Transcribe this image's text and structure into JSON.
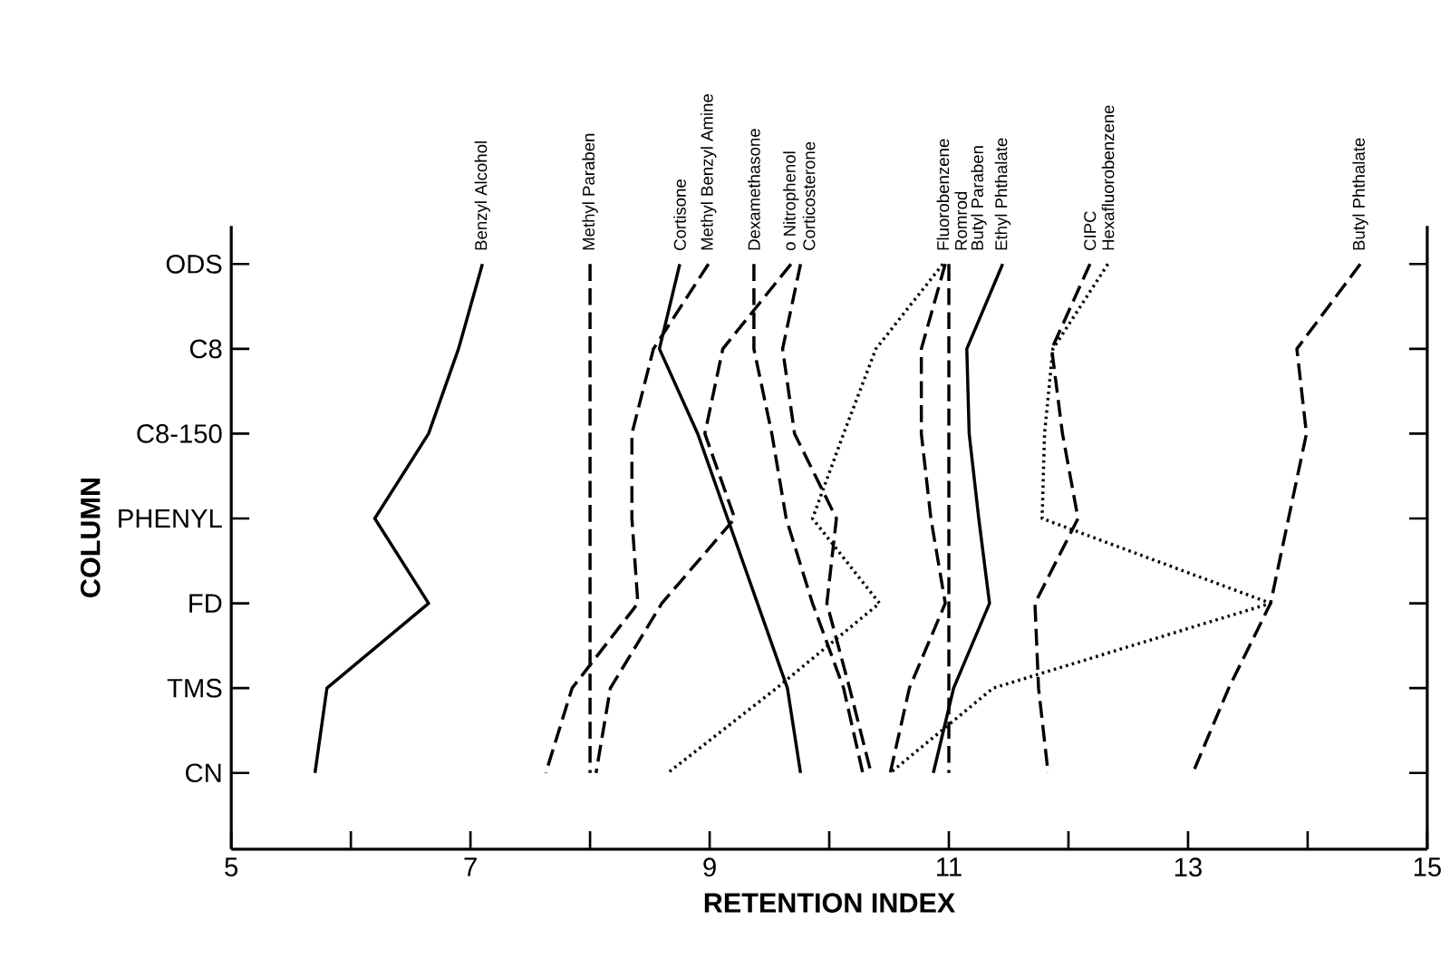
{
  "chart_data": {
    "type": "line",
    "orientation": "horizontal",
    "xlabel": "RETENTION INDEX",
    "ylabel": "COLUMN",
    "categories": [
      "ODS",
      "C8",
      "C8-150",
      "PHENYL",
      "FD",
      "TMS",
      "CN"
    ],
    "xlim": [
      5,
      15
    ],
    "xticks": [
      5,
      {
        "value": 6,
        "label": null
      },
      7,
      {
        "value": 8,
        "label": null
      },
      9,
      {
        "value": 10,
        "label": null
      },
      11,
      {
        "value": 12,
        "label": null
      },
      13,
      {
        "value": 14,
        "label": null
      },
      15
    ],
    "series": [
      {
        "name": "Benzyl Alcohol",
        "color": "#000000",
        "line_style": "solid",
        "values": [
          7.1,
          6.9,
          6.65,
          6.2,
          6.65,
          5.8,
          5.7
        ]
      },
      {
        "name": "Methyl Paraben",
        "color": "#000000",
        "line_style": "dashed",
        "values": [
          8.0,
          8.0,
          8.0,
          8.0,
          8.0,
          8.0,
          8.0
        ]
      },
      {
        "name": "Cortisone",
        "color": "#000000",
        "line_style": "solid",
        "values": [
          8.75,
          8.58,
          8.9,
          9.15,
          9.4,
          9.65,
          9.76
        ]
      },
      {
        "name": "Methyl Benzyl Amine",
        "color": "#000000",
        "line_style": "dashed",
        "values": [
          8.99,
          8.53,
          8.35,
          8.35,
          8.4,
          7.85,
          7.63
        ]
      },
      {
        "name": "Dexamethasone",
        "color": "#000000",
        "line_style": "dashed",
        "values": [
          9.37,
          9.37,
          9.52,
          9.64,
          9.86,
          10.12,
          10.28
        ]
      },
      {
        "name": "o Nitrophenol",
        "color": "#000000",
        "line_style": "dashed",
        "values": [
          9.68,
          9.11,
          8.96,
          9.21,
          8.6,
          8.17,
          8.05
        ]
      },
      {
        "name": "Corticosterone",
        "color": "#000000",
        "line_style": "dashed",
        "values": [
          9.76,
          9.61,
          9.71,
          10.06,
          9.98,
          10.17,
          10.35
        ]
      },
      {
        "name": "Fluorobenzene",
        "color": "#000000",
        "line_style": "dotted",
        "values": [
          10.95,
          10.39,
          10.12,
          9.86,
          10.42,
          9.56,
          8.65
        ]
      },
      {
        "name": "Romrod",
        "color": "#000000",
        "line_style": "dashed",
        "values": [
          10.97,
          10.77,
          10.77,
          10.85,
          10.97,
          10.67,
          10.51
        ]
      },
      {
        "name": "Butyl Paraben",
        "color": "#000000",
        "line_style": "dashed",
        "values": [
          11.0,
          11.0,
          11.0,
          11.0,
          11.0,
          11.0,
          11.0
        ]
      },
      {
        "name": "Ethyl Phthalate",
        "color": "#000000",
        "line_style": "solid",
        "values": [
          11.45,
          11.15,
          11.17,
          11.25,
          11.34,
          11.04,
          10.87
        ]
      },
      {
        "name": "CIPC",
        "color": "#000000",
        "line_style": "dashed",
        "values": [
          12.18,
          11.86,
          11.95,
          12.08,
          11.72,
          11.75,
          11.83
        ]
      },
      {
        "name": "Hexafluorobenzene",
        "color": "#000000",
        "line_style": "dotted",
        "values": [
          12.33,
          11.87,
          11.8,
          11.78,
          13.69,
          11.37,
          10.51
        ]
      },
      {
        "name": "Butyl Phthalate",
        "color": "#000000",
        "line_style": "dashed",
        "values": [
          14.44,
          13.91,
          13.99,
          13.84,
          13.69,
          13.34,
          13.04
        ]
      }
    ]
  }
}
